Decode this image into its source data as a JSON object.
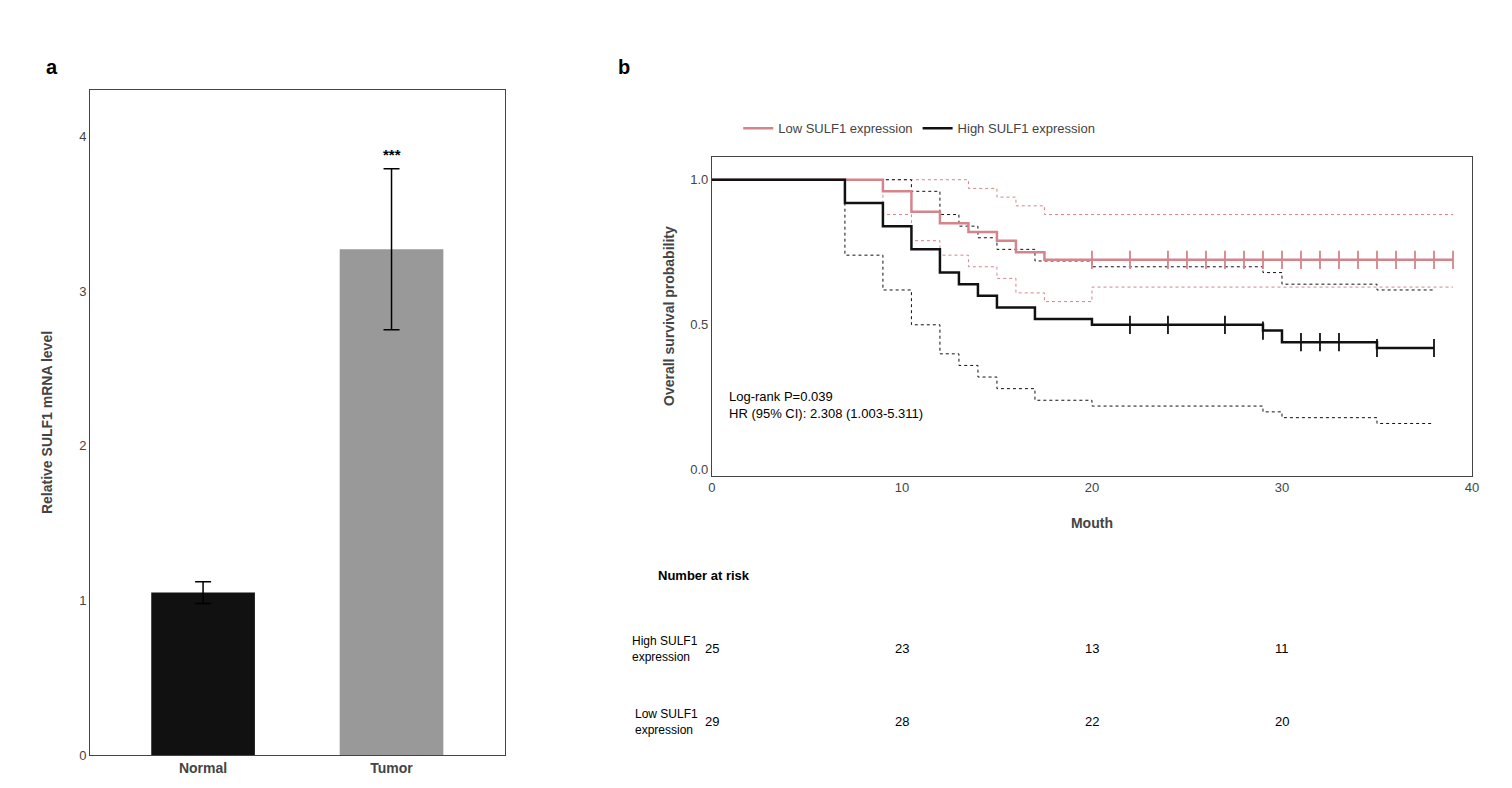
{
  "chart_data": [
    {
      "type": "bar",
      "title": "a",
      "categories": [
        "Normal",
        "Tumor"
      ],
      "values": [
        1.05,
        3.27
      ],
      "errors": [
        0.07,
        0.52
      ],
      "colors": [
        "#111111",
        "#999999"
      ],
      "ylabel": "Relative SULF1 mRNA level",
      "ylim": [
        0,
        4.3
      ],
      "yticks": [
        0,
        1,
        2,
        3,
        4
      ],
      "grid": false,
      "annotations": [
        {
          "text": "***",
          "category": "Tumor"
        }
      ]
    },
    {
      "type": "step",
      "title": "b",
      "xlabel": "Mouth",
      "ylabel": "Overall survival probability",
      "xlim": [
        0,
        40
      ],
      "ylim": [
        -0.02,
        1.08
      ],
      "xticks": [
        0,
        10,
        20,
        30,
        40
      ],
      "yticks": [
        {
          "value": 0.0,
          "label": "0.0"
        },
        0.5,
        {
          "value": 1.0,
          "label": "1.0"
        }
      ],
      "grid": false,
      "legend": "top",
      "series": [
        {
          "name": "Low SULF1 expression",
          "color": "#d4848a",
          "marker": "tick",
          "x": [
            0,
            9,
            9,
            10.5,
            10.5,
            12,
            12,
            13.5,
            13.5,
            15,
            15,
            16,
            16,
            17.5,
            17.5,
            20,
            20,
            39
          ],
          "values": [
            1.0,
            1.0,
            0.96,
            0.96,
            0.89,
            0.89,
            0.85,
            0.85,
            0.82,
            0.82,
            0.79,
            0.79,
            0.75,
            0.75,
            0.724,
            0.724,
            0.724,
            0.724
          ],
          "ci_upper": [
            1.0,
            1.0,
            1.0,
            1.0,
            1.0,
            1.0,
            1.0,
            1.0,
            0.97,
            0.97,
            0.94,
            0.94,
            0.91,
            0.91,
            0.88,
            0.88,
            0.88,
            0.88
          ],
          "ci_lower": [
            1.0,
            1.0,
            0.88,
            0.88,
            0.79,
            0.79,
            0.74,
            0.74,
            0.7,
            0.7,
            0.66,
            0.66,
            0.61,
            0.61,
            0.58,
            0.63,
            0.63,
            0.63
          ],
          "censor_x": [
            20,
            22,
            24,
            25,
            26,
            27,
            28,
            29,
            30,
            31,
            32,
            33,
            34,
            35,
            36,
            37,
            38,
            39
          ],
          "censor_values": [
            0.724,
            0.724,
            0.724,
            0.724,
            0.724,
            0.724,
            0.724,
            0.724,
            0.724,
            0.724,
            0.724,
            0.724,
            0.724,
            0.724,
            0.724,
            0.724,
            0.724,
            0.724
          ]
        },
        {
          "name": "High SULF1 expression",
          "color": "#111111",
          "marker": "tick",
          "x": [
            0,
            7,
            7,
            9,
            9,
            10.5,
            10.5,
            12,
            12,
            13,
            13,
            14,
            14,
            15,
            15,
            17,
            17,
            20,
            20,
            22,
            22,
            27,
            27,
            29,
            29,
            30,
            30,
            31,
            31,
            32,
            32,
            33,
            33,
            35,
            35,
            38
          ],
          "values": [
            1.0,
            1.0,
            0.92,
            0.92,
            0.84,
            0.84,
            0.76,
            0.76,
            0.68,
            0.68,
            0.64,
            0.64,
            0.6,
            0.6,
            0.56,
            0.56,
            0.52,
            0.52,
            0.5,
            0.5,
            0.5,
            0.5,
            0.5,
            0.5,
            0.48,
            0.48,
            0.44,
            0.44,
            0.44,
            0.44,
            0.44,
            0.44,
            0.44,
            0.44,
            0.42,
            0.42
          ],
          "ci_upper": [
            1.0,
            1.0,
            1.0,
            1.0,
            1.0,
            1.0,
            0.96,
            0.96,
            0.88,
            0.88,
            0.84,
            0.84,
            0.8,
            0.8,
            0.76,
            0.76,
            0.72,
            0.72,
            0.7,
            0.7,
            0.7,
            0.7,
            0.7,
            0.7,
            0.68,
            0.68,
            0.64,
            0.64,
            0.64,
            0.64,
            0.64,
            0.64,
            0.64,
            0.64,
            0.62,
            0.62
          ],
          "ci_lower": [
            1.0,
            1.0,
            0.74,
            0.74,
            0.62,
            0.62,
            0.5,
            0.5,
            0.4,
            0.4,
            0.36,
            0.36,
            0.32,
            0.32,
            0.28,
            0.28,
            0.24,
            0.24,
            0.22,
            0.22,
            0.22,
            0.22,
            0.22,
            0.22,
            0.2,
            0.2,
            0.18,
            0.18,
            0.18,
            0.18,
            0.18,
            0.18,
            0.18,
            0.18,
            0.16,
            0.16
          ],
          "censor_x": [
            22,
            24,
            27,
            29,
            31,
            32,
            33,
            35,
            38
          ],
          "censor_values": [
            0.5,
            0.5,
            0.5,
            0.48,
            0.44,
            0.44,
            0.44,
            0.42,
            0.42
          ]
        }
      ],
      "annotations": [
        "Log-rank P=0.039\nHR (95% CI): 2.308 (1.003-5.311)"
      ],
      "risk_table": {
        "title": "Number at risk",
        "times": [
          0,
          10,
          20,
          30
        ],
        "rows": [
          {
            "name": "High SULF1\nexpression",
            "values": [
              25,
              23,
              13,
              11
            ]
          },
          {
            "name": "Low SULF1\nexpression",
            "values": [
              29,
              28,
              22,
              20
            ]
          }
        ]
      }
    }
  ]
}
